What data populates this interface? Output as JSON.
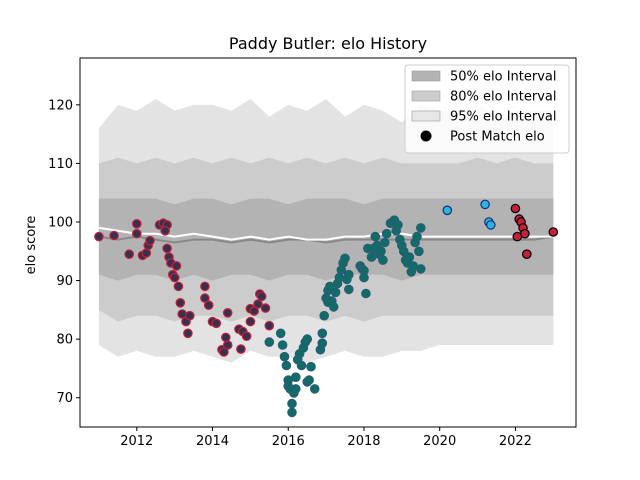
{
  "chart_data": {
    "type": "scatter",
    "title": "Paddy Butler: elo History",
    "xlabel": "",
    "ylabel": "elo score",
    "xlim": [
      2010.5,
      2023.6
    ],
    "ylim": [
      65,
      128
    ],
    "x_ticks": [
      2012,
      2014,
      2016,
      2018,
      2020,
      2022
    ],
    "y_ticks": [
      70,
      80,
      90,
      100,
      110,
      120
    ],
    "grid": false,
    "legend_position": "top-right",
    "legend": [
      {
        "label": "50% elo Interval",
        "color": "#b3b3b3"
      },
      {
        "label": "80% elo Interval",
        "color": "#cccccc"
      },
      {
        "label": "95% elo Interval",
        "color": "#e6e6e6"
      },
      {
        "label": "Post Match elo",
        "color": "#000000"
      }
    ],
    "colors": {
      "band50": "#b3b3b3",
      "band80": "#cccccc",
      "band95": "#e3e3e3",
      "median": "#888888",
      "mean": "#ffffff",
      "dark_fill": "#3b2f4d",
      "dark_edge": "#c0243c",
      "teal_fill": "#0e6e64",
      "teal_edge": "#2b5a7a",
      "cyan_fill": "#29b5dd",
      "cyan_edge": "#1a2a80",
      "red_fill": "#c4203a",
      "red_edge": "#000000"
    },
    "bands": {
      "x": [
        2011.0,
        2011.5,
        2012.0,
        2012.5,
        2013.0,
        2013.5,
        2014.0,
        2014.5,
        2015.0,
        2015.5,
        2016.0,
        2016.5,
        2017.0,
        2017.5,
        2018.0,
        2018.5,
        2019.0,
        2019.5,
        2020.0,
        2020.5,
        2021.0,
        2021.5,
        2022.0,
        2022.5,
        2023.0
      ],
      "p95_high": [
        116,
        120,
        119,
        121,
        119,
        120,
        120,
        119,
        121,
        118,
        120,
        119,
        121,
        118,
        120,
        119,
        117,
        120,
        119,
        119,
        120,
        118,
        119,
        119,
        119
      ],
      "p80_high": [
        110,
        111,
        110,
        111,
        110,
        111,
        110,
        111,
        110,
        111,
        110,
        111,
        110,
        111,
        110,
        111,
        110,
        110,
        110,
        110,
        111,
        110,
        111,
        110,
        110
      ],
      "p50_high": [
        104,
        104,
        104,
        104,
        103,
        104,
        104,
        103,
        104,
        104,
        103,
        104,
        104,
        104,
        103,
        104,
        104,
        104,
        104,
        104,
        104,
        104,
        104,
        104,
        104
      ],
      "p50_low": [
        91,
        90,
        91,
        91,
        90,
        91,
        90,
        91,
        91,
        90,
        91,
        91,
        90,
        91,
        91,
        91,
        90,
        91,
        91,
        91,
        91,
        91,
        91,
        91,
        91
      ],
      "p80_low": [
        85,
        83,
        84,
        84,
        83,
        84,
        84,
        83,
        84,
        83,
        84,
        84,
        83,
        84,
        83,
        84,
        84,
        84,
        84,
        84,
        84,
        84,
        84,
        84,
        84
      ],
      "p95_low": [
        79,
        77,
        78,
        77,
        77,
        78,
        77,
        76,
        78,
        77,
        77,
        76,
        77,
        78,
        77,
        77,
        78,
        78,
        79,
        79,
        79,
        79,
        79,
        79,
        79
      ],
      "median": [
        97.5,
        97,
        97.5,
        97,
        96.5,
        97,
        97,
        96.5,
        97,
        96.5,
        97,
        97,
        96.5,
        97,
        97,
        97,
        97,
        97,
        97,
        97,
        97,
        97,
        97,
        97,
        97.5
      ],
      "mean": [
        99,
        98.5,
        98,
        98,
        97.5,
        98,
        97.5,
        97,
        97.5,
        97,
        97.5,
        97,
        97,
        97.5,
        97.5,
        98,
        98,
        97.5,
        97.5,
        97.5,
        97.5,
        97.5,
        97.5,
        97.5,
        97.5
      ]
    },
    "series": [
      {
        "group": "dark",
        "points": [
          [
            2011.0,
            97.5
          ],
          [
            2011.4,
            97.7
          ],
          [
            2011.8,
            94.5
          ],
          [
            2012.0,
            99.7
          ],
          [
            2012.0,
            98
          ],
          [
            2012.15,
            94.3
          ],
          [
            2012.25,
            94.7
          ],
          [
            2012.3,
            96
          ],
          [
            2012.35,
            96.8
          ],
          [
            2012.6,
            99.5
          ],
          [
            2012.7,
            99.8
          ],
          [
            2012.8,
            99.5
          ],
          [
            2012.75,
            98.5
          ],
          [
            2012.8,
            95.5
          ],
          [
            2012.85,
            94
          ],
          [
            2012.9,
            93
          ],
          [
            2012.95,
            91
          ],
          [
            2013.0,
            90.5
          ],
          [
            2013.05,
            92.5
          ],
          [
            2013.1,
            89
          ],
          [
            2013.15,
            86.2
          ],
          [
            2013.2,
            84.3
          ],
          [
            2013.3,
            83
          ],
          [
            2013.35,
            81
          ],
          [
            2013.4,
            84
          ],
          [
            2013.8,
            89
          ],
          [
            2013.8,
            87
          ],
          [
            2013.9,
            85.8
          ],
          [
            2014.0,
            83
          ],
          [
            2014.1,
            82.7
          ],
          [
            2014.25,
            78.2
          ],
          [
            2014.3,
            77.8
          ],
          [
            2014.4,
            79
          ],
          [
            2014.35,
            80.3
          ],
          [
            2014.4,
            84.5
          ],
          [
            2014.7,
            81.7
          ],
          [
            2014.8,
            81.3
          ],
          [
            2014.75,
            78.3
          ],
          [
            2014.9,
            80.5
          ],
          [
            2015.0,
            83
          ],
          [
            2015.0,
            85.2
          ],
          [
            2015.1,
            84.8
          ],
          [
            2015.2,
            86
          ],
          [
            2015.25,
            87.7
          ],
          [
            2015.3,
            87.3
          ],
          [
            2015.4,
            85.3
          ],
          [
            2015.5,
            82.3
          ]
        ]
      },
      {
        "group": "teal",
        "points": [
          [
            2015.5,
            79.5
          ],
          [
            2015.8,
            81
          ],
          [
            2015.85,
            79
          ],
          [
            2015.9,
            77
          ],
          [
            2015.95,
            75.5
          ],
          [
            2016.0,
            73
          ],
          [
            2016.0,
            72
          ],
          [
            2016.05,
            71.5
          ],
          [
            2016.1,
            69
          ],
          [
            2016.1,
            67.5
          ],
          [
            2016.15,
            70.8
          ],
          [
            2016.2,
            71.5
          ],
          [
            2016.2,
            73.5
          ],
          [
            2016.25,
            76.5
          ],
          [
            2016.3,
            77.5
          ],
          [
            2016.35,
            75.5
          ],
          [
            2016.4,
            78.5
          ],
          [
            2016.45,
            79.5
          ],
          [
            2016.5,
            80
          ],
          [
            2016.5,
            72.7
          ],
          [
            2016.55,
            73
          ],
          [
            2016.6,
            75.3
          ],
          [
            2016.7,
            71.5
          ],
          [
            2016.85,
            78.2
          ],
          [
            2016.9,
            79.3
          ],
          [
            2016.9,
            81
          ],
          [
            2016.95,
            84
          ],
          [
            2017.0,
            87
          ],
          [
            2017.05,
            88.3
          ],
          [
            2017.05,
            86.3
          ],
          [
            2017.1,
            89
          ],
          [
            2017.15,
            86.5
          ],
          [
            2017.2,
            85.5
          ],
          [
            2017.25,
            88
          ],
          [
            2017.3,
            89.5
          ],
          [
            2017.35,
            90.5
          ],
          [
            2017.4,
            91.8
          ],
          [
            2017.45,
            93
          ],
          [
            2017.5,
            93.8
          ],
          [
            2017.55,
            90.2
          ],
          [
            2017.6,
            91
          ],
          [
            2017.6,
            88.5
          ],
          [
            2017.9,
            92.5
          ],
          [
            2017.95,
            92
          ],
          [
            2018.0,
            91.7
          ],
          [
            2018.0,
            90.5
          ],
          [
            2018.05,
            87.8
          ],
          [
            2018.1,
            95.5
          ],
          [
            2018.2,
            94
          ],
          [
            2018.25,
            95.5
          ],
          [
            2018.3,
            97.5
          ],
          [
            2018.35,
            96
          ],
          [
            2018.4,
            94.5
          ],
          [
            2018.45,
            95
          ],
          [
            2018.5,
            93.5
          ],
          [
            2018.55,
            96.5
          ],
          [
            2018.6,
            98
          ],
          [
            2018.7,
            99.8
          ],
          [
            2018.8,
            100.3
          ],
          [
            2018.85,
            98.5
          ],
          [
            2018.9,
            99.5
          ],
          [
            2018.95,
            97
          ],
          [
            2019.0,
            96
          ],
          [
            2019.05,
            95
          ],
          [
            2019.1,
            93.5
          ],
          [
            2019.15,
            93
          ],
          [
            2019.2,
            94
          ],
          [
            2019.25,
            91.5
          ],
          [
            2019.3,
            92.5
          ],
          [
            2019.35,
            96.5
          ],
          [
            2019.4,
            97.5
          ],
          [
            2019.45,
            95
          ],
          [
            2019.5,
            92
          ],
          [
            2019.5,
            99
          ]
        ]
      },
      {
        "group": "cyan",
        "points": [
          [
            2020.2,
            102
          ],
          [
            2021.2,
            103
          ],
          [
            2021.3,
            100
          ],
          [
            2021.35,
            99.5
          ]
        ]
      },
      {
        "group": "red",
        "points": [
          [
            2022.0,
            102.3
          ],
          [
            2022.05,
            97.5
          ],
          [
            2022.1,
            100.5
          ],
          [
            2022.15,
            100
          ],
          [
            2022.2,
            99
          ],
          [
            2022.25,
            98
          ],
          [
            2022.3,
            94.5
          ],
          [
            2023.0,
            98.3
          ]
        ]
      }
    ]
  }
}
